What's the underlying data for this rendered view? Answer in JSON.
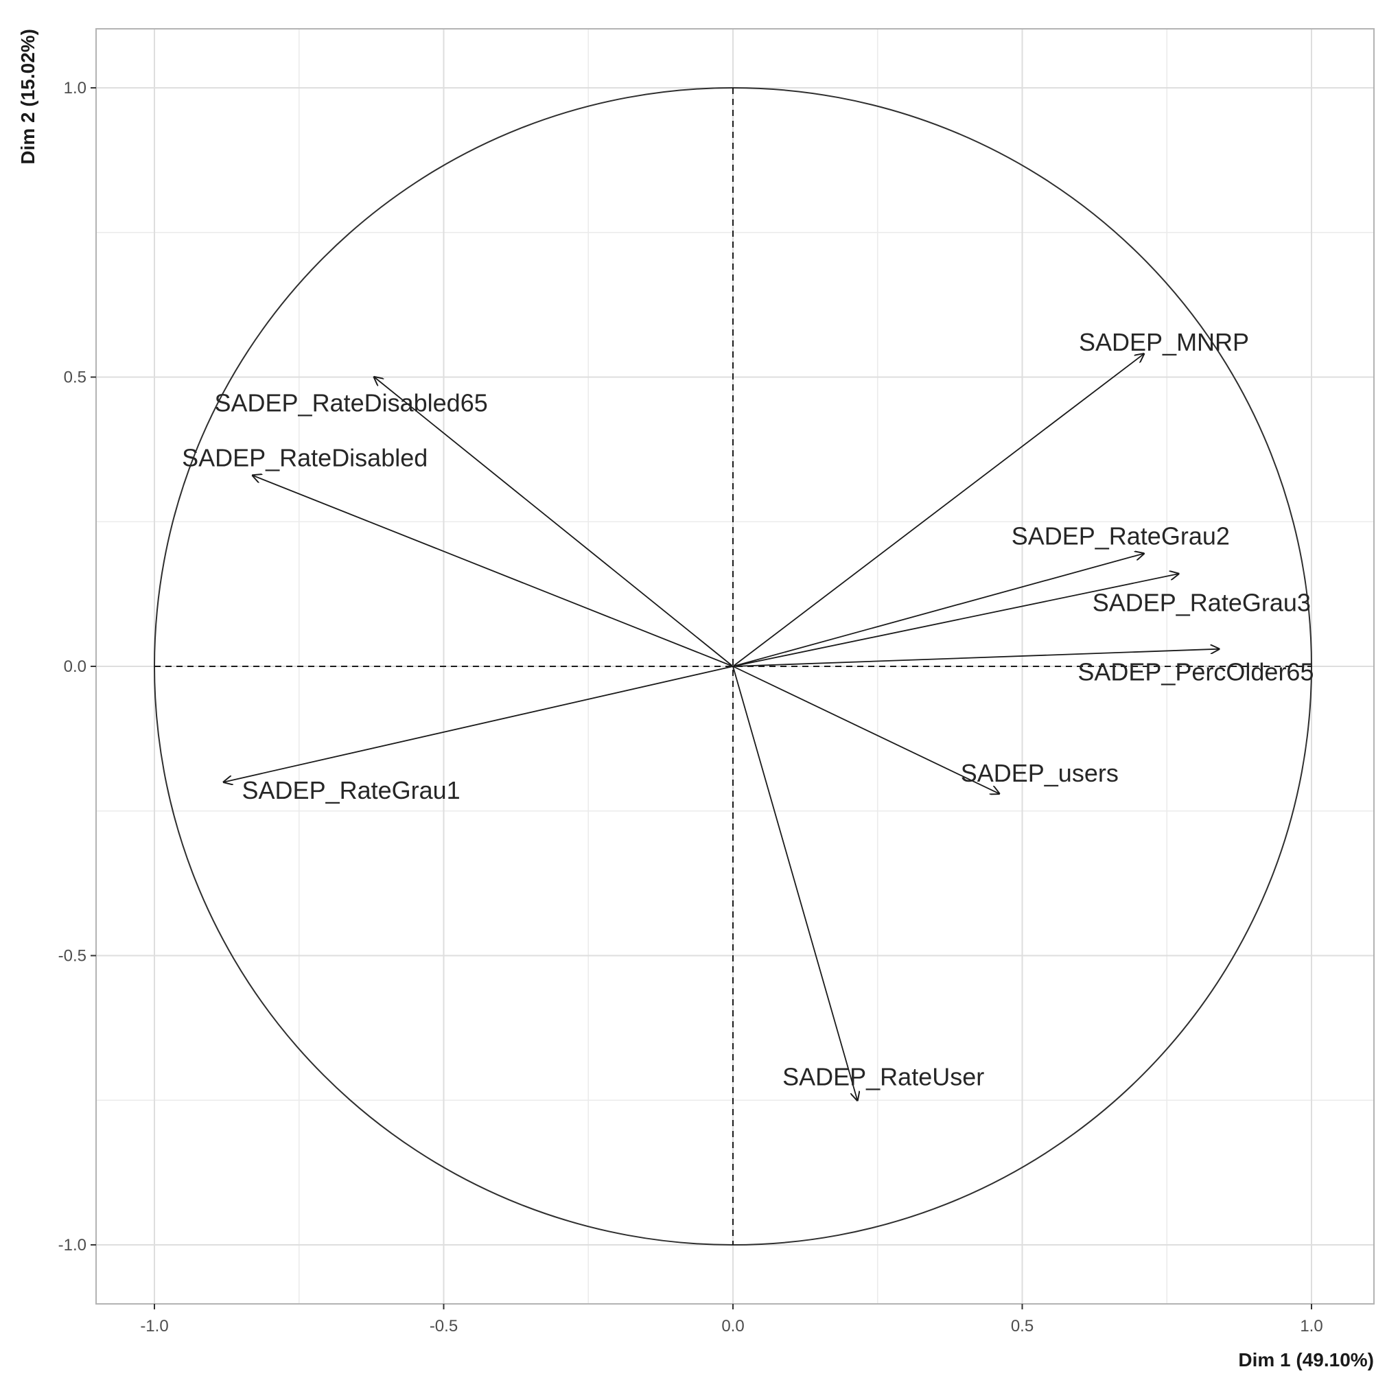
{
  "chart_data": {
    "type": "scatter",
    "subtype": "pca-correlation-circle",
    "title": "",
    "xlabel": "Dim 1 (49.10%)",
    "ylabel": "Dim 2 (15.02%)",
    "xlim": [
      -1.1,
      1.1
    ],
    "ylim": [
      -1.1,
      1.1
    ],
    "x_ticks": [
      -1.0,
      -0.5,
      0.0,
      0.5,
      1.0
    ],
    "y_ticks": [
      -1.0,
      -0.5,
      0.0,
      0.5,
      1.0
    ],
    "x_tick_labels": [
      "-1.0",
      "-0.5",
      "0.0",
      "0.5",
      "1.0"
    ],
    "y_tick_labels": [
      "-1.0",
      "-0.5",
      "0.0",
      "0.5",
      "1.0"
    ],
    "grid": true,
    "unit_circle": true,
    "zero_lines": "dashed",
    "variables": [
      {
        "name": "SADEP_MNRP",
        "x": 0.71,
        "y": 0.54,
        "label_x": 0.745,
        "label_y": 0.56
      },
      {
        "name": "SADEP_RateDisabled65",
        "x": -0.62,
        "y": 0.5,
        "label_x": -0.66,
        "label_y": 0.455
      },
      {
        "name": "SADEP_RateDisabled",
        "x": -0.83,
        "y": 0.33,
        "label_x": -0.74,
        "label_y": 0.36
      },
      {
        "name": "SADEP_RateGrau2",
        "x": 0.71,
        "y": 0.195,
        "label_x": 0.67,
        "label_y": 0.225
      },
      {
        "name": "SADEP_RateGrau3",
        "x": 0.77,
        "y": 0.16,
        "label_x": 0.81,
        "label_y": 0.11
      },
      {
        "name": "SADEP_PercOlder65",
        "x": 0.84,
        "y": 0.03,
        "label_x": 0.8,
        "label_y": -0.01
      },
      {
        "name": "SADEP_users",
        "x": 0.46,
        "y": -0.22,
        "label_x": 0.53,
        "label_y": -0.185
      },
      {
        "name": "SADEP_RateGrau1",
        "x": -0.88,
        "y": -0.2,
        "label_x": -0.66,
        "label_y": -0.215
      },
      {
        "name": "SADEP_RateUser",
        "x": 0.215,
        "y": -0.75,
        "label_x": 0.26,
        "label_y": -0.71
      }
    ]
  }
}
